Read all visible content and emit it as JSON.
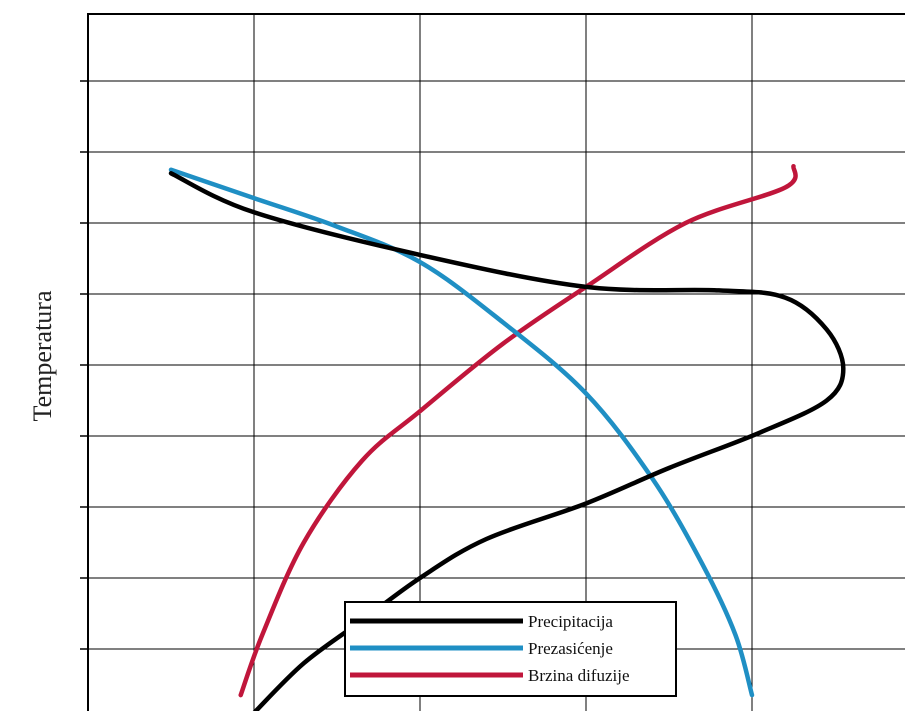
{
  "chart_data": {
    "type": "line",
    "title": "",
    "xlabel": "",
    "ylabel": "Temperatura",
    "xlim": [
      0,
      5
    ],
    "ylim": [
      0,
      9.5
    ],
    "grid": true,
    "legend_placement": "bottom-center",
    "series": [
      {
        "name": "Precipitacija",
        "color": "#000000",
        "points": [
          [
            1.0,
            0.1
          ],
          [
            1.3,
            0.8
          ],
          [
            1.65,
            1.4
          ],
          [
            2.0,
            2.0
          ],
          [
            2.4,
            2.55
          ],
          [
            3.0,
            3.05
          ],
          [
            3.5,
            3.55
          ],
          [
            4.05,
            4.05
          ],
          [
            4.45,
            4.5
          ],
          [
            4.55,
            4.95
          ],
          [
            4.45,
            5.5
          ],
          [
            4.2,
            5.95
          ],
          [
            3.8,
            6.05
          ],
          [
            3.0,
            6.1
          ],
          [
            2.0,
            6.55
          ],
          [
            1.0,
            7.15
          ],
          [
            0.5,
            7.7
          ]
        ],
        "labels_x": [],
        "labels_y": []
      },
      {
        "name": "Prezasićenje",
        "color": "#1f8fc4",
        "points": [
          [
            0.5,
            7.75
          ],
          [
            1.0,
            7.35
          ],
          [
            1.5,
            6.95
          ],
          [
            2.0,
            6.45
          ],
          [
            2.5,
            5.6
          ],
          [
            3.0,
            4.6
          ],
          [
            3.4,
            3.4
          ],
          [
            3.7,
            2.2
          ],
          [
            3.9,
            1.2
          ],
          [
            4.0,
            0.35
          ]
        ],
        "labels_x": [],
        "labels_y": []
      },
      {
        "name": "Brzina difuzije",
        "color": "#c0163b",
        "points": [
          [
            0.92,
            0.35
          ],
          [
            1.05,
            1.2
          ],
          [
            1.3,
            2.5
          ],
          [
            1.65,
            3.65
          ],
          [
            2.0,
            4.35
          ],
          [
            2.5,
            5.3
          ],
          [
            3.0,
            6.1
          ],
          [
            3.6,
            7.0
          ],
          [
            4.2,
            7.5
          ],
          [
            4.25,
            7.8
          ]
        ],
        "labels_x": [],
        "labels_y": []
      }
    ]
  }
}
